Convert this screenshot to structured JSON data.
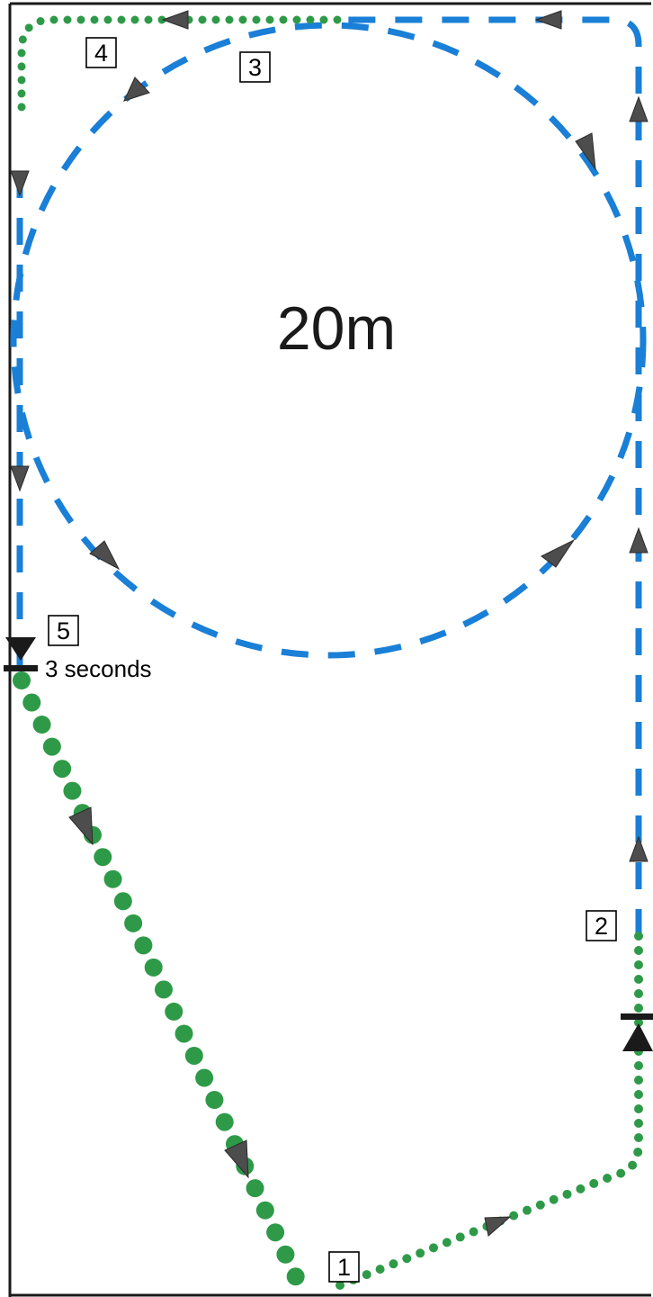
{
  "arena": {
    "circle_size_label": "20m",
    "halt_duration_label": "3 seconds"
  },
  "markers": [
    {
      "number": "1"
    },
    {
      "number": "2"
    },
    {
      "number": "3"
    },
    {
      "number": "4"
    },
    {
      "number": "5"
    }
  ],
  "colors": {
    "dashed_route": "#1a7fd6",
    "dotted_route": "#2e9a48",
    "arena_border": "#1a1a1a",
    "arrow": "#4d4d4d"
  }
}
